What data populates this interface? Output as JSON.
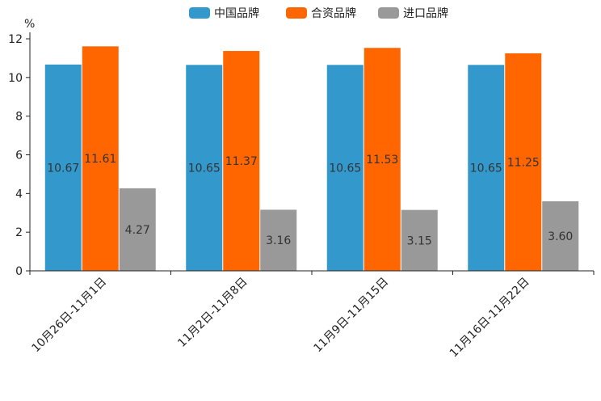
{
  "chart_data": {
    "type": "bar",
    "ylabel": "%",
    "ylim": [
      0,
      12
    ],
    "yticks": [
      0,
      2,
      4,
      6,
      8,
      10,
      12
    ],
    "yticks_text": [
      "0",
      "2",
      "4",
      "6",
      "8",
      "10",
      "12"
    ],
    "categories": [
      "10月26日-11月1日",
      "11月2日-11月8日",
      "11月9日-11月15日",
      "11月16日-11月22日"
    ],
    "series": [
      {
        "name": "中国品牌",
        "color": "#3399cc",
        "values": [
          10.67,
          10.65,
          10.65,
          10.65
        ],
        "labels": [
          "10.67",
          "10.65",
          "10.65",
          "10.65"
        ]
      },
      {
        "name": "合资品牌",
        "color": "#ff6600",
        "values": [
          11.61,
          11.37,
          11.53,
          11.25
        ],
        "labels": [
          "11.61",
          "11.37",
          "11.53",
          "11.25"
        ]
      },
      {
        "name": "进口品牌",
        "color": "#999999",
        "values": [
          4.27,
          3.16,
          3.15,
          3.6
        ],
        "labels": [
          "4.27",
          "3.16",
          "3.15",
          "3.60"
        ]
      }
    ],
    "legend_position": "top-center",
    "grid": false
  }
}
